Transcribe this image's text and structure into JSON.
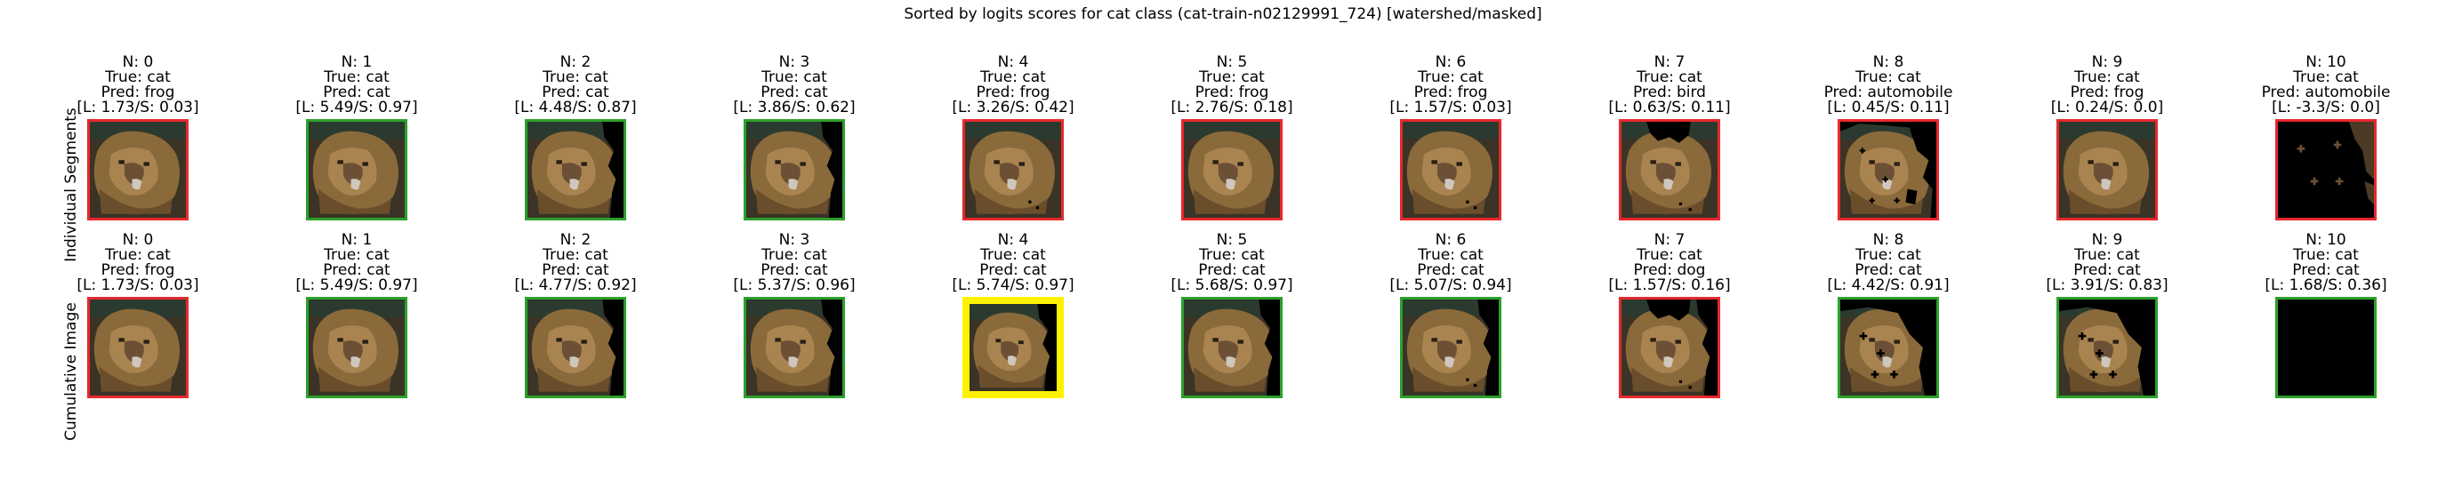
{
  "figure": {
    "title": "Sorted by logits scores for cat class (cat-train-n02129991_724) [watershed/masked]",
    "row_labels": [
      "Individual Segments",
      "Cumulative Image"
    ]
  },
  "colors": {
    "correct": "#2ca02c",
    "incorrect": "#e8282d",
    "highlight": "#fff200",
    "background": "#000000"
  },
  "rows": [
    {
      "name": "individual-segments",
      "panels": [
        {
          "n": "N: 0",
          "true": "True: cat",
          "pred": "Pred: frog",
          "score": "[L: 1.73/S: 0.03]",
          "status": "incorrect",
          "mask": "full"
        },
        {
          "n": "N: 1",
          "true": "True: cat",
          "pred": "Pred: cat",
          "score": "[L: 5.49/S: 0.97]",
          "status": "correct",
          "mask": "full"
        },
        {
          "n": "N: 2",
          "true": "True: cat",
          "pred": "Pred: cat",
          "score": "[L: 4.48/S: 0.87]",
          "status": "correct",
          "mask": "right-cut"
        },
        {
          "n": "N: 3",
          "true": "True: cat",
          "pred": "Pred: cat",
          "score": "[L: 3.86/S: 0.62]",
          "status": "correct",
          "mask": "right-cut"
        },
        {
          "n": "N: 4",
          "true": "True: cat",
          "pred": "Pred: frog",
          "score": "[L: 3.26/S: 0.42]",
          "status": "incorrect",
          "mask": "full-dot"
        },
        {
          "n": "N: 5",
          "true": "True: cat",
          "pred": "Pred: frog",
          "score": "[L: 2.76/S: 0.18]",
          "status": "incorrect",
          "mask": "full"
        },
        {
          "n": "N: 6",
          "true": "True: cat",
          "pred": "Pred: frog",
          "score": "[L: 1.57/S: 0.03]",
          "status": "incorrect",
          "mask": "full-dot"
        },
        {
          "n": "N: 7",
          "true": "True: cat",
          "pred": "Pred: bird",
          "score": "[L: 0.63/S: 0.11]",
          "status": "incorrect",
          "mask": "top-hole"
        },
        {
          "n": "N: 8",
          "true": "True: cat",
          "pred": "Pred: automobile",
          "score": "[L: 0.45/S: 0.11]",
          "status": "incorrect",
          "mask": "patchy"
        },
        {
          "n": "N: 9",
          "true": "True: cat",
          "pred": "Pred: frog",
          "score": "[L: 0.24/S: 0.0]",
          "status": "incorrect",
          "mask": "full"
        },
        {
          "n": "N: 10",
          "true": "True: cat",
          "pred": "Pred: automobile",
          "score": "[L: -3.3/S: 0.0]",
          "status": "incorrect",
          "mask": "dark"
        }
      ]
    },
    {
      "name": "cumulative-image",
      "panels": [
        {
          "n": "N: 0",
          "true": "True: cat",
          "pred": "Pred: frog",
          "score": "[L: 1.73/S: 0.03]",
          "status": "incorrect",
          "mask": "full"
        },
        {
          "n": "N: 1",
          "true": "True: cat",
          "pred": "Pred: cat",
          "score": "[L: 5.49/S: 0.97]",
          "status": "correct",
          "mask": "full"
        },
        {
          "n": "N: 2",
          "true": "True: cat",
          "pred": "Pred: cat",
          "score": "[L: 4.77/S: 0.92]",
          "status": "correct",
          "mask": "right-cut"
        },
        {
          "n": "N: 3",
          "true": "True: cat",
          "pred": "Pred: cat",
          "score": "[L: 5.37/S: 0.96]",
          "status": "correct",
          "mask": "right-cut"
        },
        {
          "n": "N: 4",
          "true": "True: cat",
          "pred": "Pred: cat",
          "score": "[L: 5.74/S: 0.97]",
          "status": "highlight",
          "mask": "right-cut"
        },
        {
          "n": "N: 5",
          "true": "True: cat",
          "pred": "Pred: cat",
          "score": "[L: 5.68/S: 0.97]",
          "status": "correct",
          "mask": "right-cut"
        },
        {
          "n": "N: 6",
          "true": "True: cat",
          "pred": "Pred: cat",
          "score": "[L: 5.07/S: 0.94]",
          "status": "correct",
          "mask": "right-cut-dot"
        },
        {
          "n": "N: 7",
          "true": "True: cat",
          "pred": "Pred: dog",
          "score": "[L: 1.57/S: 0.16]",
          "status": "incorrect",
          "mask": "top-hole-cut"
        },
        {
          "n": "N: 8",
          "true": "True: cat",
          "pred": "Pred: cat",
          "score": "[L: 4.42/S: 0.91]",
          "status": "correct",
          "mask": "left-blob"
        },
        {
          "n": "N: 9",
          "true": "True: cat",
          "pred": "Pred: cat",
          "score": "[L: 3.91/S: 0.83]",
          "status": "correct",
          "mask": "left-blob"
        },
        {
          "n": "N: 10",
          "true": "True: cat",
          "pred": "Pred: cat",
          "score": "[L: 1.68/S: 0.36]",
          "status": "correct",
          "mask": "dark"
        }
      ]
    }
  ]
}
